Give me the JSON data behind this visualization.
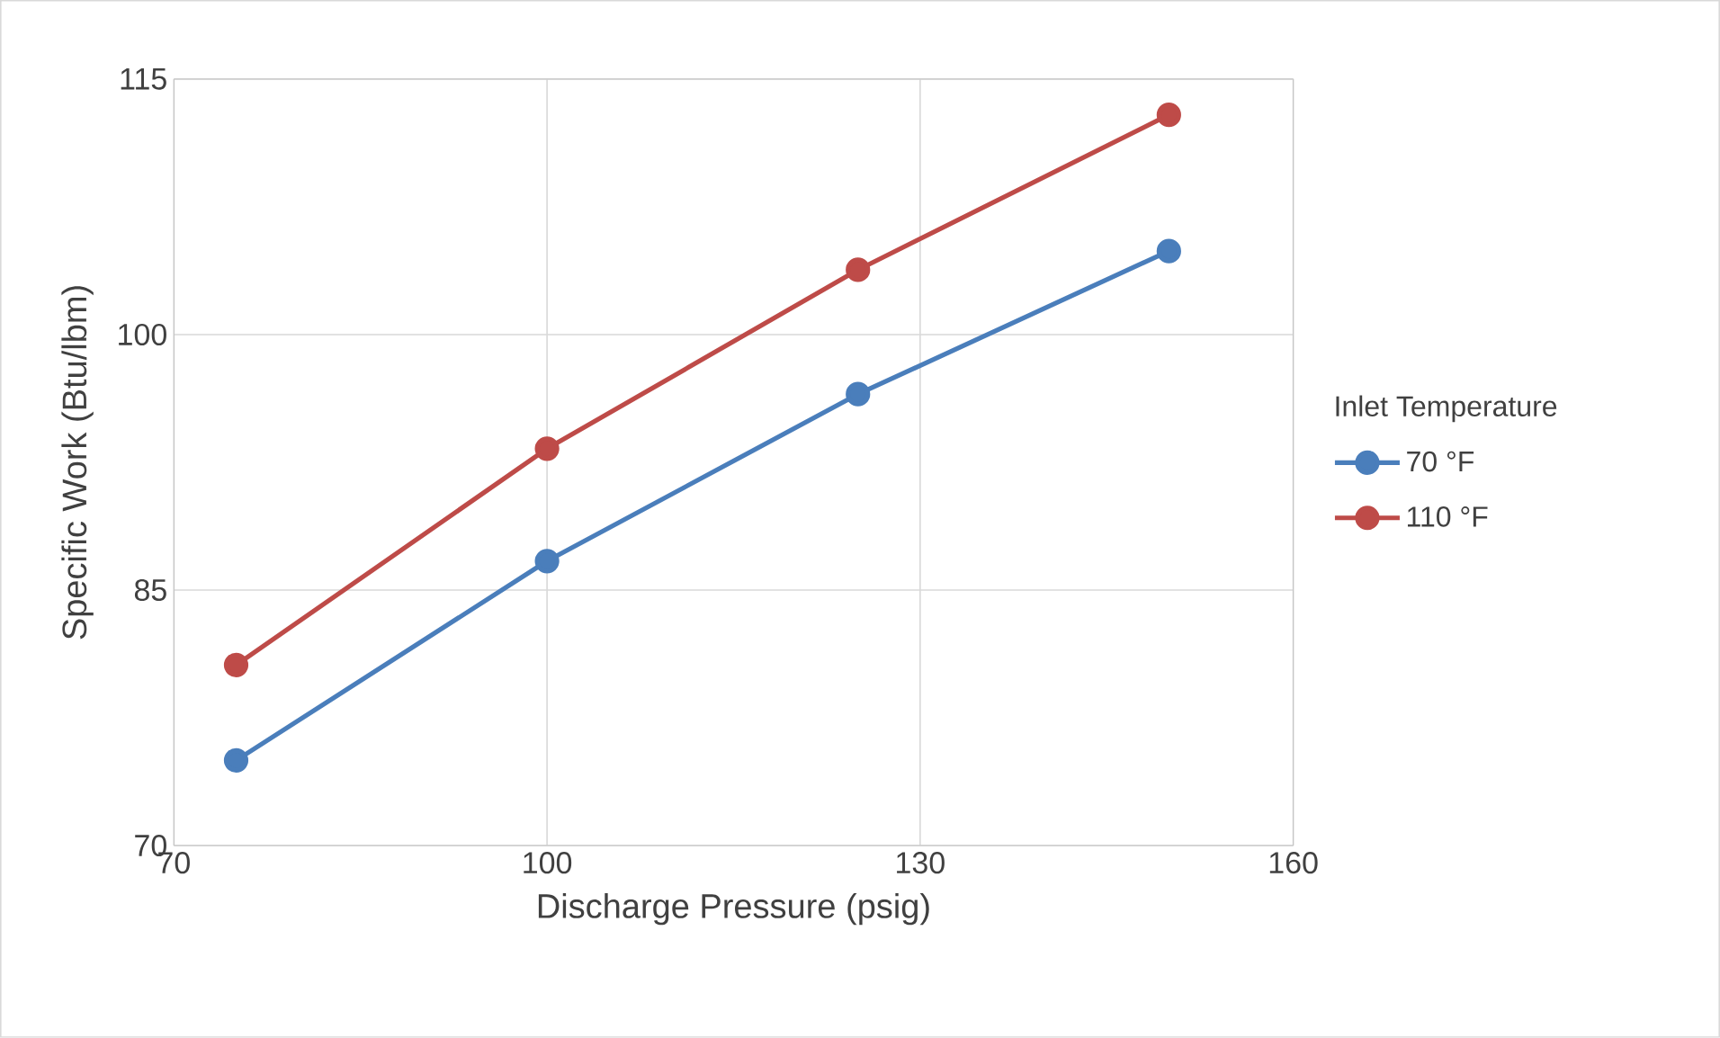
{
  "chart_data": {
    "type": "line",
    "xlabel": "Discharge Pressure (psig)",
    "ylabel": "Specific Work (Btu/lbm)",
    "legend_title": "Inlet Temperature",
    "x": [
      75,
      100,
      125,
      150
    ],
    "series": [
      {
        "name": "70 °F",
        "color": "#4a7ebb",
        "values": [
          75.0,
          86.7,
          96.5,
          104.9
        ]
      },
      {
        "name": "110 °F",
        "color": "#be4b48",
        "values": [
          80.6,
          93.3,
          103.8,
          112.9
        ]
      }
    ],
    "xlim": [
      70,
      160
    ],
    "ylim": [
      70,
      115
    ],
    "xticks": [
      70,
      100,
      130,
      160
    ],
    "yticks": [
      70,
      85,
      100,
      115
    ],
    "grid": true,
    "legend": "right",
    "marker": "circle",
    "line_style": "solid"
  }
}
